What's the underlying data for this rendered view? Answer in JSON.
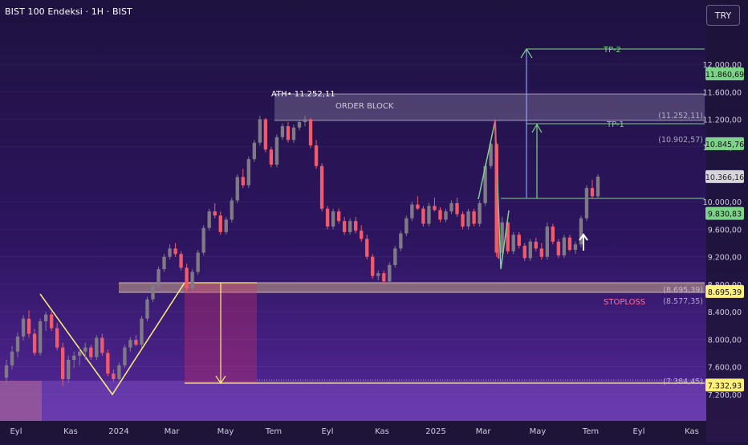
{
  "header": {
    "title": "BIST 100 Endeksi · 1H · BIST"
  },
  "toolbar": {
    "currency": "TRY"
  },
  "colors": {
    "up": "#7f7a86",
    "down": "#f05a6a",
    "bg_top": "#1f1340",
    "bg_bottom": "#5a2aa0",
    "yellow": "#fff07a",
    "green": "#7ed38a",
    "tp2_arrow": "#8aa0ff"
  },
  "chart_data": {
    "type": "candlestick",
    "ylim": [
      7000,
      12200
    ],
    "x_tick_labels": [
      "Eyl",
      "Kas",
      "2024",
      "Mar",
      "May",
      "Tem",
      "Eyl",
      "Kas",
      "2025",
      "Mar",
      "May",
      "Tem",
      "Eyl",
      "Kas"
    ],
    "y_tick_values": [
      12000,
      11600,
      11200,
      10800,
      10000,
      9600,
      9200,
      8800,
      8400,
      8000,
      7600,
      7200
    ],
    "y_tick_labels": [
      "12.000,00",
      "11.600,00",
      "11.200,00",
      "10.800,00",
      "10.000,00",
      "9.600,00",
      "9.200,00",
      "8.800,00",
      "8.400,00",
      "8.000,00",
      "7.600,00",
      "7.200,00"
    ],
    "price_badges": [
      {
        "value": 11860.69,
        "label": "11.860,69",
        "kind": "green"
      },
      {
        "value": 10845.76,
        "label": "10.845,76",
        "kind": "green"
      },
      {
        "value": 10366.16,
        "label": "10.366,16",
        "kind": "gray"
      },
      {
        "value": 9830.83,
        "label": "9.830,83",
        "kind": "green"
      },
      {
        "value": 8695.39,
        "label": "8.695,39",
        "kind": "yellow"
      },
      {
        "value": 7332.93,
        "label": "7.332,93",
        "kind": "yellow"
      }
    ],
    "level_labels": [
      {
        "value": 11252.11,
        "label": "(11.252,11)"
      },
      {
        "value": 10902.57,
        "label": "(10.902,57)"
      },
      {
        "value": 8695.39,
        "label": "(8.695,39)"
      },
      {
        "value": 8577.35,
        "label": "(8.577,35)"
      },
      {
        "value": 7384.45,
        "label": "(7.384,45)"
      }
    ],
    "annotations": {
      "ath": "ATH• 11.252,11",
      "order_block": "ORDER BLOCK",
      "stoploss": "STOPLOSS",
      "tp1": "TP-1",
      "tp2": "TP-2"
    },
    "candles": [
      [
        7440,
        7700,
        7350,
        7620
      ],
      [
        7620,
        7900,
        7560,
        7820
      ],
      [
        7820,
        8100,
        7740,
        8040
      ],
      [
        8040,
        8350,
        7980,
        8300
      ],
      [
        8300,
        8420,
        8020,
        8080
      ],
      [
        8080,
        8150,
        7760,
        7800
      ],
      [
        7800,
        8300,
        7760,
        8260
      ],
      [
        8260,
        8400,
        8120,
        8360
      ],
      [
        8360,
        8400,
        8120,
        8160
      ],
      [
        8160,
        8240,
        7840,
        7880
      ],
      [
        7880,
        7950,
        7320,
        7420
      ],
      [
        7420,
        7760,
        7360,
        7700
      ],
      [
        7700,
        7820,
        7580,
        7760
      ],
      [
        7760,
        7880,
        7620,
        7820
      ],
      [
        7820,
        7950,
        7700,
        7880
      ],
      [
        7880,
        7920,
        7700,
        7740
      ],
      [
        7740,
        8060,
        7700,
        8020
      ],
      [
        8020,
        8080,
        7760,
        7800
      ],
      [
        7800,
        7850,
        7460,
        7500
      ],
      [
        7500,
        7560,
        7380,
        7420
      ],
      [
        7420,
        7660,
        7400,
        7620
      ],
      [
        7620,
        7920,
        7580,
        7880
      ],
      [
        7880,
        8030,
        7820,
        7990
      ],
      [
        7990,
        8060,
        7900,
        7920
      ],
      [
        7920,
        8340,
        7880,
        8300
      ],
      [
        8300,
        8620,
        8260,
        8580
      ],
      [
        8580,
        8820,
        8540,
        8780
      ],
      [
        8780,
        9060,
        8740,
        9020
      ],
      [
        9020,
        9240,
        8980,
        9200
      ],
      [
        9200,
        9380,
        9160,
        9320
      ],
      [
        9320,
        9400,
        9200,
        9240
      ],
      [
        9240,
        9280,
        9000,
        9040
      ],
      [
        9040,
        9100,
        8700,
        8740
      ],
      [
        8740,
        9020,
        8700,
        8980
      ],
      [
        8980,
        9300,
        8940,
        9260
      ],
      [
        9260,
        9660,
        9220,
        9620
      ],
      [
        9620,
        9900,
        9580,
        9860
      ],
      [
        9860,
        9980,
        9760,
        9800
      ],
      [
        9800,
        9860,
        9520,
        9560
      ],
      [
        9560,
        9780,
        9520,
        9740
      ],
      [
        9740,
        10060,
        9700,
        10020
      ],
      [
        10020,
        10400,
        9980,
        10360
      ],
      [
        10360,
        10480,
        10200,
        10240
      ],
      [
        10240,
        10660,
        10200,
        10620
      ],
      [
        10620,
        10900,
        10580,
        10860
      ],
      [
        10860,
        11250,
        10820,
        11200
      ],
      [
        11200,
        11220,
        10720,
        10760
      ],
      [
        10760,
        10800,
        10500,
        10540
      ],
      [
        10540,
        10980,
        10500,
        10940
      ],
      [
        10940,
        11140,
        10900,
        11100
      ],
      [
        11100,
        11160,
        10860,
        10900
      ],
      [
        10900,
        11120,
        10860,
        11080
      ],
      [
        11080,
        11200,
        11040,
        11160
      ],
      [
        11160,
        11252,
        11100,
        11200
      ],
      [
        11200,
        11220,
        10780,
        10820
      ],
      [
        10820,
        10900,
        10480,
        10520
      ],
      [
        10520,
        10560,
        9860,
        9900
      ],
      [
        9900,
        9940,
        9600,
        9640
      ],
      [
        9640,
        9900,
        9600,
        9860
      ],
      [
        9860,
        9900,
        9680,
        9720
      ],
      [
        9720,
        9780,
        9520,
        9560
      ],
      [
        9560,
        9760,
        9520,
        9720
      ],
      [
        9720,
        9780,
        9540,
        9580
      ],
      [
        9580,
        9660,
        9420,
        9460
      ],
      [
        9460,
        9520,
        9160,
        9200
      ],
      [
        9200,
        9240,
        8880,
        8920
      ],
      [
        8920,
        9000,
        8860,
        8960
      ],
      [
        8960,
        9000,
        8800,
        8840
      ],
      [
        8840,
        9120,
        8800,
        9080
      ],
      [
        9080,
        9360,
        9040,
        9320
      ],
      [
        9320,
        9580,
        9280,
        9540
      ],
      [
        9540,
        9800,
        9500,
        9760
      ],
      [
        9760,
        10000,
        9720,
        9960
      ],
      [
        9960,
        10080,
        9880,
        9900
      ],
      [
        9900,
        9940,
        9640,
        9680
      ],
      [
        9680,
        9980,
        9640,
        9940
      ],
      [
        9940,
        10060,
        9860,
        9880
      ],
      [
        9880,
        9920,
        9700,
        9740
      ],
      [
        9740,
        9900,
        9700,
        9860
      ],
      [
        9860,
        10020,
        9820,
        9980
      ],
      [
        9980,
        10060,
        9780,
        9820
      ],
      [
        9820,
        9860,
        9600,
        9640
      ],
      [
        9640,
        9900,
        9600,
        9860
      ],
      [
        9860,
        9900,
        9640,
        9680
      ],
      [
        9680,
        10020,
        9640,
        9980
      ],
      [
        9980,
        10560,
        9940,
        10520
      ],
      [
        10520,
        10860,
        10480,
        10840
      ],
      [
        10840,
        10860,
        9200,
        9260
      ],
      [
        9260,
        9780,
        9200,
        9700
      ],
      [
        9700,
        9720,
        9240,
        9280
      ],
      [
        9280,
        9560,
        9240,
        9520
      ],
      [
        9520,
        9560,
        9320,
        9360
      ],
      [
        9360,
        9400,
        9140,
        9180
      ],
      [
        9180,
        9460,
        9140,
        9420
      ],
      [
        9420,
        9480,
        9280,
        9320
      ],
      [
        9320,
        9400,
        9160,
        9200
      ],
      [
        9200,
        9700,
        9160,
        9640
      ],
      [
        9640,
        9680,
        9380,
        9420
      ],
      [
        9420,
        9460,
        9180,
        9220
      ],
      [
        9220,
        9520,
        9180,
        9480
      ],
      [
        9480,
        9520,
        9280,
        9300
      ],
      [
        9300,
        9420,
        9240,
        9380
      ],
      [
        9380,
        9800,
        9340,
        9760
      ],
      [
        9760,
        10240,
        9720,
        10200
      ],
      [
        10200,
        10320,
        10040,
        10080
      ],
      [
        10080,
        10400,
        10040,
        10366
      ]
    ]
  }
}
